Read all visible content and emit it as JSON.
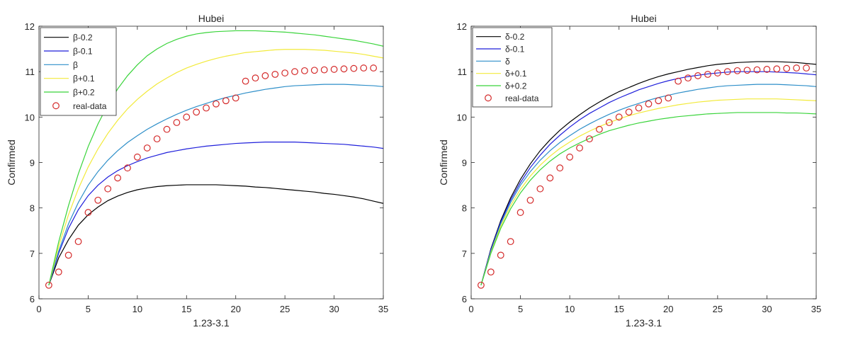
{
  "chart_data": [
    {
      "type": "line",
      "title": "Hubei",
      "xlabel": "1.23-3.1",
      "ylabel": "Confirmed",
      "xlim": [
        0,
        35
      ],
      "ylim": [
        6,
        12
      ],
      "xticks": [
        0,
        5,
        10,
        15,
        20,
        25,
        30,
        35
      ],
      "yticks": [
        6,
        7,
        8,
        9,
        10,
        11,
        12
      ],
      "grid": false,
      "legend_position": "top-left",
      "x": [
        1,
        2,
        3,
        4,
        5,
        6,
        7,
        8,
        9,
        10,
        11,
        12,
        13,
        14,
        15,
        16,
        17,
        18,
        19,
        20,
        21,
        22,
        23,
        24,
        25,
        26,
        27,
        28,
        29,
        30,
        31,
        32,
        33,
        34,
        35
      ],
      "series": [
        {
          "name": "β-0.2",
          "color": "#000000",
          "marker": "line",
          "values": [
            6.3,
            6.9,
            7.3,
            7.62,
            7.85,
            8.02,
            8.16,
            8.26,
            8.34,
            8.4,
            8.44,
            8.47,
            8.49,
            8.5,
            8.51,
            8.51,
            8.51,
            8.51,
            8.5,
            8.49,
            8.48,
            8.46,
            8.45,
            8.43,
            8.41,
            8.39,
            8.37,
            8.35,
            8.32,
            8.3,
            8.27,
            8.24,
            8.2,
            8.15,
            8.1
          ]
        },
        {
          "name": "β-0.1",
          "color": "#1f1fdb",
          "marker": "line",
          "values": [
            6.3,
            7.0,
            7.55,
            7.96,
            8.27,
            8.5,
            8.68,
            8.82,
            8.93,
            9.02,
            9.1,
            9.16,
            9.22,
            9.26,
            9.3,
            9.33,
            9.36,
            9.38,
            9.4,
            9.42,
            9.43,
            9.44,
            9.45,
            9.45,
            9.45,
            9.45,
            9.44,
            9.43,
            9.42,
            9.41,
            9.4,
            9.38,
            9.36,
            9.34,
            9.31
          ]
        },
        {
          "name": "β",
          "color": "#2e8fc9",
          "marker": "line",
          "values": [
            6.3,
            7.05,
            7.65,
            8.12,
            8.5,
            8.8,
            9.05,
            9.26,
            9.44,
            9.59,
            9.73,
            9.85,
            9.96,
            10.06,
            10.15,
            10.23,
            10.3,
            10.37,
            10.43,
            10.48,
            10.53,
            10.57,
            10.61,
            10.64,
            10.67,
            10.69,
            10.7,
            10.71,
            10.72,
            10.72,
            10.72,
            10.71,
            10.7,
            10.69,
            10.67
          ]
        },
        {
          "name": "β+0.1",
          "color": "#f2ea3a",
          "marker": "line",
          "values": [
            6.3,
            7.15,
            7.85,
            8.42,
            8.9,
            9.3,
            9.64,
            9.93,
            10.18,
            10.39,
            10.57,
            10.73,
            10.86,
            10.98,
            11.08,
            11.16,
            11.23,
            11.29,
            11.34,
            11.38,
            11.42,
            11.44,
            11.46,
            11.48,
            11.49,
            11.49,
            11.49,
            11.48,
            11.47,
            11.45,
            11.43,
            11.41,
            11.38,
            11.34,
            11.3
          ]
        },
        {
          "name": "β+0.2",
          "color": "#39d43a",
          "marker": "line",
          "values": [
            6.3,
            7.25,
            8.05,
            8.75,
            9.35,
            9.85,
            10.27,
            10.62,
            10.91,
            11.15,
            11.35,
            11.5,
            11.62,
            11.71,
            11.78,
            11.83,
            11.86,
            11.88,
            11.89,
            11.9,
            11.9,
            11.9,
            11.89,
            11.88,
            11.87,
            11.85,
            11.83,
            11.81,
            11.78,
            11.75,
            11.72,
            11.69,
            11.65,
            11.61,
            11.56
          ]
        },
        {
          "name": "real-data",
          "color": "#d42a2a",
          "marker": "circle",
          "values": [
            6.3,
            6.59,
            6.96,
            7.26,
            7.9,
            8.17,
            8.42,
            8.66,
            8.88,
            9.12,
            9.32,
            9.52,
            9.73,
            9.88,
            10.0,
            10.11,
            10.2,
            10.29,
            10.36,
            10.42,
            10.79,
            10.86,
            10.91,
            10.94,
            10.97,
            11.0,
            11.02,
            11.03,
            11.04,
            11.05,
            11.06,
            11.07,
            11.08,
            11.08,
            null
          ]
        }
      ]
    },
    {
      "type": "line",
      "title": "Hubei",
      "xlabel": "1.23-3.1",
      "ylabel": "Confirmed",
      "xlim": [
        0,
        35
      ],
      "ylim": [
        6,
        12
      ],
      "xticks": [
        0,
        5,
        10,
        15,
        20,
        25,
        30,
        35
      ],
      "yticks": [
        6,
        7,
        8,
        9,
        10,
        11,
        12
      ],
      "grid": false,
      "legend_position": "top-left",
      "x": [
        1,
        2,
        3,
        4,
        5,
        6,
        7,
        8,
        9,
        10,
        11,
        12,
        13,
        14,
        15,
        16,
        17,
        18,
        19,
        20,
        21,
        22,
        23,
        24,
        25,
        26,
        27,
        28,
        29,
        30,
        31,
        32,
        33,
        34,
        35
      ],
      "series": [
        {
          "name": "δ-0.2",
          "color": "#000000",
          "marker": "line",
          "values": [
            6.3,
            7.1,
            7.72,
            8.22,
            8.63,
            8.97,
            9.26,
            9.5,
            9.71,
            9.89,
            10.05,
            10.2,
            10.33,
            10.45,
            10.56,
            10.65,
            10.74,
            10.82,
            10.89,
            10.95,
            11.0,
            11.05,
            11.09,
            11.13,
            11.16,
            11.18,
            11.2,
            11.21,
            11.22,
            11.22,
            11.22,
            11.21,
            11.2,
            11.18,
            11.16
          ]
        },
        {
          "name": "δ-0.1",
          "color": "#1f1fdb",
          "marker": "line",
          "values": [
            6.3,
            7.08,
            7.69,
            8.17,
            8.56,
            8.89,
            9.16,
            9.4,
            9.6,
            9.78,
            9.94,
            10.08,
            10.2,
            10.32,
            10.42,
            10.51,
            10.6,
            10.67,
            10.74,
            10.8,
            10.85,
            10.89,
            10.92,
            10.95,
            10.97,
            10.99,
            11.0,
            11.0,
            11.0,
            11.0,
            10.99,
            10.98,
            10.97,
            10.95,
            10.93
          ]
        },
        {
          "name": "δ",
          "color": "#2e8fc9",
          "marker": "line",
          "values": [
            6.3,
            7.05,
            7.65,
            8.12,
            8.5,
            8.8,
            9.05,
            9.26,
            9.44,
            9.59,
            9.73,
            9.85,
            9.96,
            10.06,
            10.15,
            10.23,
            10.3,
            10.37,
            10.43,
            10.48,
            10.53,
            10.57,
            10.61,
            10.64,
            10.67,
            10.69,
            10.7,
            10.71,
            10.72,
            10.72,
            10.72,
            10.71,
            10.7,
            10.69,
            10.67
          ]
        },
        {
          "name": "δ+0.1",
          "color": "#f2ea3a",
          "marker": "line",
          "values": [
            6.3,
            7.02,
            7.6,
            8.05,
            8.41,
            8.7,
            8.94,
            9.14,
            9.31,
            9.45,
            9.58,
            9.69,
            9.79,
            9.88,
            9.96,
            10.03,
            10.09,
            10.14,
            10.19,
            10.23,
            10.27,
            10.3,
            10.33,
            10.35,
            10.37,
            10.38,
            10.39,
            10.4,
            10.4,
            10.4,
            10.4,
            10.39,
            10.38,
            10.37,
            10.36
          ]
        },
        {
          "name": "δ+0.2",
          "color": "#39d43a",
          "marker": "line",
          "values": [
            6.3,
            7.0,
            7.55,
            7.98,
            8.33,
            8.61,
            8.84,
            9.03,
            9.19,
            9.32,
            9.43,
            9.53,
            9.62,
            9.7,
            9.76,
            9.82,
            9.87,
            9.91,
            9.95,
            9.98,
            10.01,
            10.03,
            10.05,
            10.07,
            10.08,
            10.09,
            10.1,
            10.1,
            10.1,
            10.1,
            10.1,
            10.09,
            10.09,
            10.08,
            10.07
          ]
        },
        {
          "name": "real-data",
          "color": "#d42a2a",
          "marker": "circle",
          "values": [
            6.3,
            6.59,
            6.96,
            7.26,
            7.9,
            8.17,
            8.42,
            8.66,
            8.88,
            9.12,
            9.32,
            9.52,
            9.73,
            9.88,
            10.0,
            10.11,
            10.2,
            10.29,
            10.36,
            10.42,
            10.79,
            10.86,
            10.91,
            10.94,
            10.97,
            11.0,
            11.02,
            11.03,
            11.04,
            11.05,
            11.06,
            11.07,
            11.08,
            11.08,
            null
          ]
        }
      ]
    }
  ]
}
